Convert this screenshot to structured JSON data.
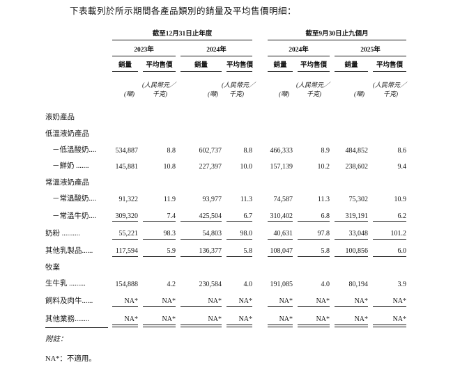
{
  "intro": "下表載列於所示期間各產品類別的銷量及平均售價明細：",
  "colors": {
    "ink": "#141414",
    "background": "#ffffff"
  },
  "table": {
    "col_groups": [
      {
        "label": "截至12月31日止年度",
        "years": [
          "2023年",
          "2024年"
        ]
      },
      {
        "label": "截至9月30日止九個月",
        "years": [
          "2024年",
          "2025年"
        ]
      }
    ],
    "sub_headers": {
      "volume": "銷量",
      "price": "平均售價"
    },
    "units": {
      "volume": "(噸)",
      "price_line1": "(人民幣元／",
      "price_line2": "千克)"
    },
    "rows": [
      {
        "label": "液奶產品",
        "bold": true,
        "section": true,
        "indent": 0,
        "underline": "none",
        "values": [
          "",
          "",
          "",
          "",
          "",
          "",
          "",
          ""
        ]
      },
      {
        "label": "低溫液奶產品",
        "bold": false,
        "section": true,
        "indent": 0,
        "underline": "none",
        "values": [
          "",
          "",
          "",
          "",
          "",
          "",
          "",
          ""
        ]
      },
      {
        "label": "－低溫酸奶....",
        "bold": false,
        "section": false,
        "indent": 1,
        "underline": "none",
        "values": [
          "534,887",
          "8.8",
          "602,737",
          "8.8",
          "466,333",
          "8.9",
          "484,852",
          "8.6"
        ]
      },
      {
        "label": "－鮮奶 .......",
        "bold": false,
        "section": false,
        "indent": 1,
        "underline": "none",
        "values": [
          "145,881",
          "10.8",
          "227,397",
          "10.0",
          "157,139",
          "10.2",
          "238,602",
          "9.4"
        ]
      },
      {
        "label": "常溫液奶產品",
        "bold": false,
        "section": true,
        "indent": 0,
        "underline": "none",
        "values": [
          "",
          "",
          "",
          "",
          "",
          "",
          "",
          ""
        ]
      },
      {
        "label": "－常溫酸奶....",
        "bold": false,
        "section": false,
        "indent": 1,
        "underline": "none",
        "values": [
          "91,322",
          "11.9",
          "93,977",
          "11.3",
          "74,587",
          "11.3",
          "75,302",
          "10.9"
        ]
      },
      {
        "label": "－常溫牛奶....",
        "bold": false,
        "section": false,
        "indent": 1,
        "underline": "single",
        "values": [
          "309,320",
          "7.4",
          "425,504",
          "6.7",
          "310,402",
          "6.8",
          "319,191",
          "6.2"
        ]
      },
      {
        "label": "奶粉 ..........",
        "bold": true,
        "section": false,
        "indent": 0,
        "underline": "single",
        "values": [
          "55,221",
          "98.3",
          "54,803",
          "98.0",
          "40,631",
          "97.8",
          "33,048",
          "101.2"
        ]
      },
      {
        "label": "其他乳製品......",
        "bold": true,
        "section": false,
        "indent": 0,
        "underline": "single",
        "values": [
          "117,594",
          "5.9",
          "136,377",
          "5.8",
          "108,047",
          "5.8",
          "100,856",
          "6.0"
        ]
      },
      {
        "label": "牧業",
        "bold": true,
        "section": true,
        "indent": 0,
        "underline": "none",
        "values": [
          "",
          "",
          "",
          "",
          "",
          "",
          "",
          ""
        ]
      },
      {
        "label": "生牛乳 .........",
        "bold": false,
        "section": false,
        "indent": 0,
        "underline": "none",
        "values": [
          "154,888",
          "4.2",
          "230,584",
          "4.0",
          "191,085",
          "4.0",
          "80,194",
          "3.9"
        ]
      },
      {
        "label": "飼料及肉牛......",
        "bold": false,
        "section": false,
        "indent": 0,
        "underline": "single",
        "values": [
          "NA*",
          "NA*",
          "NA*",
          "NA*",
          "NA*",
          "NA*",
          "NA*",
          "NA*"
        ]
      },
      {
        "label": "其他業務........",
        "bold": true,
        "section": false,
        "indent": 0,
        "underline": "double",
        "values": [
          "NA*",
          "NA*",
          "NA*",
          "NA*",
          "NA*",
          "NA*",
          "NA*",
          "NA*"
        ]
      }
    ]
  },
  "footnote": {
    "label": "附註：",
    "na_note": "NA*：不適用。"
  }
}
